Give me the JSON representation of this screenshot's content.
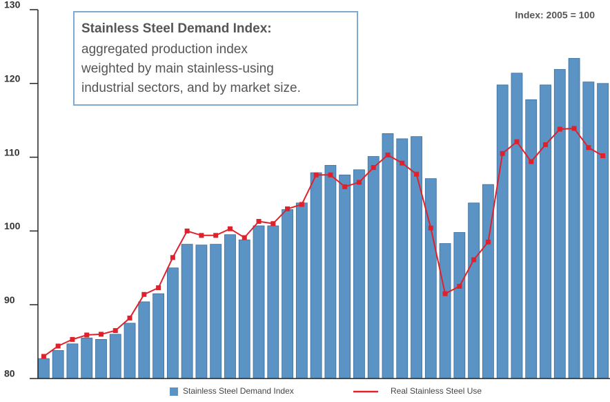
{
  "chart_data": {
    "type": "bar",
    "annotation": {
      "heading": "Stainless Steel Demand Index:",
      "lines": [
        "aggregated production index",
        "weighted by main stainless-using",
        "industrial sectors, and by market size."
      ]
    },
    "note": "Index: 2005 = 100",
    "categories": [
      null,
      null,
      null,
      null,
      null,
      null,
      null,
      null,
      null,
      null,
      null,
      null,
      null,
      null,
      null,
      null,
      null,
      null,
      null,
      null,
      null,
      null,
      null,
      null,
      null,
      null,
      null,
      null,
      null,
      null,
      null,
      null,
      null,
      null,
      null,
      null,
      null,
      null,
      null,
      null
    ],
    "series": [
      {
        "name": "Stainless Steel Demand Index",
        "type": "bar",
        "color": "#5b93c5",
        "values": [
          82.7,
          83.8,
          84.7,
          85.5,
          85.3,
          86.0,
          87.5,
          90.4,
          91.5,
          95.0,
          98.2,
          98.1,
          98.2,
          99.5,
          98.8,
          100.7,
          100.7,
          102.9,
          103.8,
          107.9,
          108.9,
          107.6,
          108.3,
          110.1,
          113.2,
          112.5,
          112.8,
          107.1,
          98.3,
          99.8,
          103.8,
          106.3,
          119.8,
          121.4,
          117.8,
          119.8,
          121.9,
          123.4,
          120.2,
          120.0
        ]
      },
      {
        "name": "Real Stainless Steel Use",
        "type": "line",
        "color": "#e0202a",
        "values": [
          83.0,
          84.4,
          85.3,
          85.9,
          86.0,
          86.5,
          88.2,
          91.4,
          92.3,
          96.4,
          100.0,
          99.4,
          99.4,
          100.3,
          99.1,
          101.3,
          101.0,
          103.0,
          103.6,
          107.6,
          107.6,
          106.0,
          106.6,
          108.6,
          110.3,
          109.2,
          107.7,
          100.4,
          91.5,
          92.5,
          96.1,
          98.5,
          110.5,
          112.1,
          109.4,
          111.7,
          113.8,
          113.9,
          111.3,
          110.2
        ]
      }
    ],
    "ylim": [
      80,
      130
    ],
    "yticks": [
      80,
      90,
      100,
      110,
      120,
      130
    ],
    "grid": false
  }
}
